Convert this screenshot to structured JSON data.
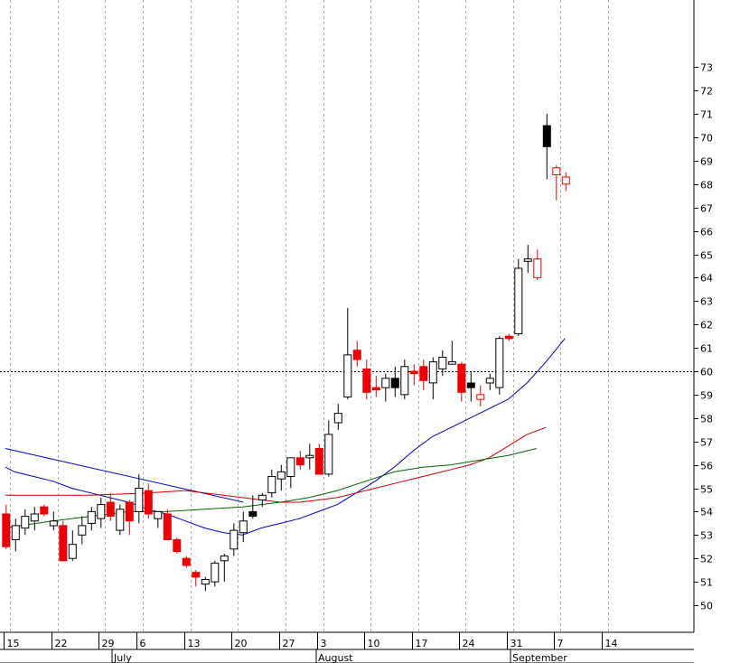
{
  "chart_data": {
    "type": "candlestick",
    "title": "",
    "xlabel": "",
    "ylabel": "",
    "ylim": [
      49.3,
      73.3
    ],
    "y_ticks": [
      50,
      51,
      52,
      53,
      54,
      55,
      56,
      57,
      58,
      59,
      60,
      61,
      62,
      63,
      64,
      65,
      66,
      67,
      68,
      69,
      70,
      71,
      72,
      73
    ],
    "y_axis_side": "right",
    "grid": "vertical dashed at weekly ticks",
    "reference_line": {
      "value": 60,
      "style": "dotted"
    },
    "x_ticks": [
      {
        "label": "15",
        "i": 0
      },
      {
        "label": "22",
        "i": 5
      },
      {
        "label": "29",
        "i": 10
      },
      {
        "label": "6",
        "i": 14
      },
      {
        "label": "13",
        "i": 19
      },
      {
        "label": "20",
        "i": 24
      },
      {
        "label": "27",
        "i": 29
      },
      {
        "label": "3",
        "i": 33
      },
      {
        "label": "10",
        "i": 38
      },
      {
        "label": "17",
        "i": 43
      },
      {
        "label": "24",
        "i": 48
      },
      {
        "label": "31",
        "i": 53
      },
      {
        "label": "7",
        "i": 58
      },
      {
        "label": "14",
        "i": 63
      }
    ],
    "months": [
      {
        "label": "July",
        "i": 11.5
      },
      {
        "label": "August",
        "i": 33
      },
      {
        "label": "September",
        "i": 53.5
      }
    ],
    "candles": [
      {
        "i": -0.4,
        "o": 53.9,
        "h": 54.3,
        "l": 52.4,
        "c": 52.5,
        "t": "down"
      },
      {
        "i": 0.6,
        "o": 52.8,
        "h": 53.7,
        "l": 52.3,
        "c": 53.4,
        "t": "up"
      },
      {
        "i": 1.6,
        "o": 53.3,
        "h": 54.1,
        "l": 53.0,
        "c": 53.8,
        "t": "up"
      },
      {
        "i": 2.6,
        "o": 53.6,
        "h": 54.2,
        "l": 53.2,
        "c": 53.9,
        "t": "up"
      },
      {
        "i": 3.6,
        "o": 54.2,
        "h": 54.3,
        "l": 53.8,
        "c": 53.9,
        "t": "down"
      },
      {
        "i": 4.6,
        "o": 53.6,
        "h": 54.0,
        "l": 53.2,
        "c": 53.4,
        "t": "up"
      },
      {
        "i": 5.6,
        "o": 53.4,
        "h": 53.6,
        "l": 51.9,
        "c": 51.9,
        "t": "down"
      },
      {
        "i": 6.6,
        "o": 52.0,
        "h": 53.2,
        "l": 51.9,
        "c": 52.6,
        "t": "up"
      },
      {
        "i": 7.6,
        "o": 53.0,
        "h": 53.8,
        "l": 52.6,
        "c": 53.4,
        "t": "up"
      },
      {
        "i": 8.6,
        "o": 53.5,
        "h": 54.2,
        "l": 53.2,
        "c": 54.0,
        "t": "up"
      },
      {
        "i": 9.6,
        "o": 53.7,
        "h": 54.6,
        "l": 53.3,
        "c": 54.3,
        "t": "up"
      },
      {
        "i": 10.6,
        "o": 54.4,
        "h": 54.8,
        "l": 53.6,
        "c": 53.8,
        "t": "down"
      },
      {
        "i": 11.6,
        "o": 53.2,
        "h": 54.3,
        "l": 53.0,
        "c": 54.1,
        "t": "up"
      },
      {
        "i": 12.6,
        "o": 54.4,
        "h": 54.5,
        "l": 53.0,
        "c": 53.6,
        "t": "down"
      },
      {
        "i": 13.6,
        "o": 54.0,
        "h": 55.6,
        "l": 53.5,
        "c": 55.0,
        "t": "up"
      },
      {
        "i": 14.6,
        "o": 54.9,
        "h": 55.2,
        "l": 53.7,
        "c": 53.9,
        "t": "down"
      },
      {
        "i": 15.6,
        "o": 53.7,
        "h": 54.0,
        "l": 53.3,
        "c": 54.0,
        "t": "up"
      },
      {
        "i": 16.6,
        "o": 53.9,
        "h": 54.1,
        "l": 52.8,
        "c": 52.8,
        "t": "down"
      },
      {
        "i": 17.6,
        "o": 52.8,
        "h": 52.9,
        "l": 52.2,
        "c": 52.3,
        "t": "down"
      },
      {
        "i": 18.6,
        "o": 52.0,
        "h": 52.1,
        "l": 51.6,
        "c": 51.7,
        "t": "down"
      },
      {
        "i": 19.6,
        "o": 51.4,
        "h": 51.5,
        "l": 50.8,
        "c": 51.2,
        "t": "down"
      },
      {
        "i": 20.6,
        "o": 50.9,
        "h": 51.2,
        "l": 50.6,
        "c": 51.1,
        "t": "up"
      },
      {
        "i": 21.6,
        "o": 51.0,
        "h": 51.9,
        "l": 50.8,
        "c": 51.8,
        "t": "up"
      },
      {
        "i": 22.6,
        "o": 51.9,
        "h": 52.2,
        "l": 51.0,
        "c": 52.1,
        "t": "up"
      },
      {
        "i": 23.6,
        "o": 52.4,
        "h": 53.5,
        "l": 52.1,
        "c": 53.2,
        "t": "up"
      },
      {
        "i": 24.6,
        "o": 53.1,
        "h": 54.0,
        "l": 52.7,
        "c": 53.6,
        "t": "up"
      },
      {
        "i": 25.6,
        "o": 54.0,
        "h": 54.7,
        "l": 53.7,
        "c": 53.8,
        "t": "down_black"
      },
      {
        "i": 26.6,
        "o": 54.5,
        "h": 54.8,
        "l": 54.2,
        "c": 54.7,
        "t": "up"
      },
      {
        "i": 27.6,
        "o": 54.8,
        "h": 55.8,
        "l": 54.6,
        "c": 55.5,
        "t": "up"
      },
      {
        "i": 28.6,
        "o": 55.4,
        "h": 56.0,
        "l": 54.9,
        "c": 55.7,
        "t": "up"
      },
      {
        "i": 29.6,
        "o": 55.5,
        "h": 56.1,
        "l": 55.0,
        "c": 56.3,
        "t": "up"
      },
      {
        "i": 30.6,
        "o": 56.3,
        "h": 56.6,
        "l": 55.8,
        "c": 56.0,
        "t": "down"
      },
      {
        "i": 31.6,
        "o": 56.3,
        "h": 56.9,
        "l": 55.8,
        "c": 56.4,
        "t": "up"
      },
      {
        "i": 32.6,
        "o": 56.7,
        "h": 56.9,
        "l": 55.6,
        "c": 55.6,
        "t": "down"
      },
      {
        "i": 33.6,
        "o": 55.6,
        "h": 57.9,
        "l": 55.5,
        "c": 57.3,
        "t": "up"
      },
      {
        "i": 34.6,
        "o": 57.8,
        "h": 58.6,
        "l": 57.5,
        "c": 58.2,
        "t": "up"
      },
      {
        "i": 35.6,
        "o": 58.9,
        "h": 62.7,
        "l": 58.8,
        "c": 60.7,
        "t": "up"
      },
      {
        "i": 36.6,
        "o": 60.9,
        "h": 61.3,
        "l": 60.2,
        "c": 60.5,
        "t": "down"
      },
      {
        "i": 37.6,
        "o": 60.1,
        "h": 60.5,
        "l": 58.8,
        "c": 59.1,
        "t": "down"
      },
      {
        "i": 38.6,
        "o": 59.3,
        "h": 59.8,
        "l": 58.9,
        "c": 59.2,
        "t": "down"
      },
      {
        "i": 39.6,
        "o": 59.3,
        "h": 59.9,
        "l": 58.7,
        "c": 59.7,
        "t": "up"
      },
      {
        "i": 40.6,
        "o": 59.7,
        "h": 60.2,
        "l": 58.9,
        "c": 59.3,
        "t": "down_black"
      },
      {
        "i": 41.6,
        "o": 59.0,
        "h": 60.5,
        "l": 58.8,
        "c": 60.2,
        "t": "up"
      },
      {
        "i": 42.6,
        "o": 60.0,
        "h": 60.3,
        "l": 59.4,
        "c": 59.9,
        "t": "down"
      },
      {
        "i": 43.6,
        "o": 60.2,
        "h": 60.5,
        "l": 59.2,
        "c": 59.6,
        "t": "down"
      },
      {
        "i": 44.6,
        "o": 59.5,
        "h": 60.6,
        "l": 58.8,
        "c": 60.4,
        "t": "up"
      },
      {
        "i": 45.6,
        "o": 60.1,
        "h": 60.9,
        "l": 59.8,
        "c": 60.6,
        "t": "up"
      },
      {
        "i": 46.6,
        "o": 60.3,
        "h": 61.3,
        "l": 60.3,
        "c": 60.4,
        "t": "up"
      },
      {
        "i": 47.6,
        "o": 60.3,
        "h": 60.4,
        "l": 58.7,
        "c": 59.1,
        "t": "down"
      },
      {
        "i": 48.6,
        "o": 59.5,
        "h": 60.0,
        "l": 58.7,
        "c": 59.3,
        "t": "down_black"
      },
      {
        "i": 49.6,
        "o": 59.0,
        "h": 59.4,
        "l": 58.5,
        "c": 58.8,
        "t": "down_hollow"
      },
      {
        "i": 50.6,
        "o": 59.5,
        "h": 59.9,
        "l": 59.2,
        "c": 59.7,
        "t": "up"
      },
      {
        "i": 51.6,
        "o": 59.3,
        "h": 61.5,
        "l": 59.0,
        "c": 61.4,
        "t": "up"
      },
      {
        "i": 52.6,
        "o": 61.5,
        "h": 61.6,
        "l": 61.3,
        "c": 61.4,
        "t": "down"
      },
      {
        "i": 53.6,
        "o": 61.6,
        "h": 64.8,
        "l": 61.5,
        "c": 64.4,
        "t": "up"
      },
      {
        "i": 54.6,
        "o": 64.7,
        "h": 65.4,
        "l": 64.2,
        "c": 64.8,
        "t": "up"
      },
      {
        "i": 55.6,
        "o": 64.8,
        "h": 65.2,
        "l": 63.9,
        "c": 64.0,
        "t": "down_hollow"
      },
      {
        "i": 56.6,
        "o": 70.5,
        "h": 71.0,
        "l": 68.2,
        "c": 69.6,
        "t": "down_black"
      },
      {
        "i": 57.6,
        "o": 68.7,
        "h": 68.8,
        "l": 67.3,
        "c": 68.4,
        "t": "down_hollow"
      },
      {
        "i": 58.6,
        "o": 68.3,
        "h": 68.5,
        "l": 67.7,
        "c": 68.0,
        "t": "down_hollow"
      }
    ],
    "lines": [
      {
        "color": "#0000cc",
        "points": [
          [
            -0.5,
            56.7
          ],
          [
            24.6,
            54.4
          ]
        ]
      },
      {
        "color": "#0000cc",
        "points": [
          [
            -0.5,
            55.9
          ],
          [
            0.5,
            55.7
          ],
          [
            2.5,
            55.5
          ],
          [
            4.5,
            55.3
          ],
          [
            6.5,
            55.0
          ],
          [
            8.5,
            54.8
          ],
          [
            10.5,
            54.6
          ],
          [
            12.5,
            54.4
          ],
          [
            14.5,
            54.1
          ],
          [
            16.5,
            53.9
          ],
          [
            18.5,
            53.6
          ],
          [
            20.5,
            53.3
          ],
          [
            22.5,
            53.1
          ],
          [
            24.5,
            53.0
          ],
          [
            26.5,
            53.3
          ],
          [
            28.5,
            53.5
          ],
          [
            30.5,
            53.7
          ],
          [
            32.5,
            54.0
          ],
          [
            34.5,
            54.3
          ],
          [
            36.5,
            54.8
          ],
          [
            38.5,
            55.3
          ],
          [
            40.5,
            55.9
          ],
          [
            42.5,
            56.6
          ],
          [
            44.5,
            57.2
          ],
          [
            46.5,
            57.6
          ],
          [
            48.5,
            58.0
          ],
          [
            50.5,
            58.4
          ],
          [
            52.5,
            58.8
          ],
          [
            54.5,
            59.5
          ],
          [
            56.5,
            60.4
          ],
          [
            58.5,
            61.4
          ]
        ]
      },
      {
        "color": "#cc0000",
        "points": [
          [
            -0.5,
            54.7
          ],
          [
            8.5,
            54.7
          ],
          [
            14.5,
            54.8
          ],
          [
            18.5,
            54.9
          ],
          [
            22.5,
            54.7
          ],
          [
            24.5,
            54.6
          ],
          [
            26.5,
            54.5
          ],
          [
            28.5,
            54.4
          ],
          [
            30.5,
            54.4
          ],
          [
            32.5,
            54.5
          ],
          [
            34.5,
            54.6
          ],
          [
            36.5,
            54.8
          ],
          [
            38.5,
            55.0
          ],
          [
            40.5,
            55.2
          ],
          [
            42.5,
            55.4
          ],
          [
            44.5,
            55.6
          ],
          [
            46.5,
            55.8
          ],
          [
            48.5,
            56.0
          ],
          [
            50.5,
            56.3
          ],
          [
            52.5,
            56.8
          ],
          [
            54.5,
            57.3
          ],
          [
            56.5,
            57.6
          ]
        ]
      },
      {
        "color": "#006600",
        "points": [
          [
            -0.5,
            53.3
          ],
          [
            4.5,
            53.6
          ],
          [
            8.5,
            53.8
          ],
          [
            12.5,
            54.0
          ],
          [
            16.5,
            54.0
          ],
          [
            20.5,
            54.1
          ],
          [
            24.5,
            54.2
          ],
          [
            28.5,
            54.4
          ],
          [
            31.5,
            54.6
          ],
          [
            34.5,
            54.9
          ],
          [
            37.5,
            55.3
          ],
          [
            40.5,
            55.7
          ],
          [
            43.5,
            55.9
          ],
          [
            46.5,
            56.0
          ],
          [
            49.5,
            56.2
          ],
          [
            52.5,
            56.4
          ],
          [
            55.5,
            56.7
          ]
        ]
      }
    ]
  }
}
